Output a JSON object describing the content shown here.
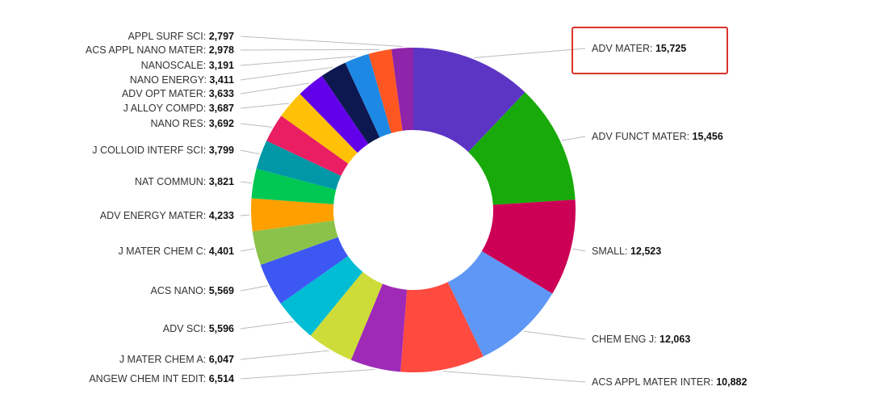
{
  "chart_data": {
    "type": "pie",
    "style": "donut",
    "highlighted_category": "ADV MATER",
    "highlight_color": "#d9342b",
    "leader_color": "#bbbbbb",
    "slices": [
      {
        "name": "ADV MATER",
        "value": 15725,
        "label": "ADV MATER: ",
        "value_label": "15,725",
        "color": "#5c35c4"
      },
      {
        "name": "ADV FUNCT MATER",
        "value": 15456,
        "label": "ADV FUNCT MATER: ",
        "value_label": "15,456",
        "color": "#18aa0a"
      },
      {
        "name": "SMALL",
        "value": 12523,
        "label": "SMALL: ",
        "value_label": "12,523",
        "color": "#cc0055"
      },
      {
        "name": "CHEM ENG J",
        "value": 12063,
        "label": "CHEM ENG J: ",
        "value_label": "12,063",
        "color": "#5e97f5"
      },
      {
        "name": "ACS APPL MATER INTER",
        "value": 10882,
        "label": "ACS APPL MATER INTER: ",
        "value_label": "10,882",
        "color": "#ff4a3f"
      },
      {
        "name": "ANGEW CHEM INT EDIT",
        "value": 6514,
        "label": "ANGEW CHEM INT EDIT: ",
        "value_label": "6,514",
        "color": "#9e2ab7"
      },
      {
        "name": "J MATER CHEM A",
        "value": 6047,
        "label": "J MATER CHEM A: ",
        "value_label": "6,047",
        "color": "#cddc39"
      },
      {
        "name": "ADV SCI",
        "value": 5596,
        "label": "ADV SCI: ",
        "value_label": "5,596",
        "color": "#00bcd4"
      },
      {
        "name": "ACS NANO",
        "value": 5569,
        "label": "ACS NANO: ",
        "value_label": "5,569",
        "color": "#3d57f3"
      },
      {
        "name": "J MATER CHEM C",
        "value": 4401,
        "label": "J MATER CHEM C: ",
        "value_label": "4,401",
        "color": "#8bc34a"
      },
      {
        "name": "ADV ENERGY MATER",
        "value": 4233,
        "label": "ADV ENERGY MATER: ",
        "value_label": "4,233",
        "color": "#ff9f00"
      },
      {
        "name": "NAT COMMUN",
        "value": 3821,
        "label": "NAT COMMUN: ",
        "value_label": "3,821",
        "color": "#00c853"
      },
      {
        "name": "J COLLOID INTERF SCI",
        "value": 3799,
        "label": "J COLLOID INTERF SCI: ",
        "value_label": "3,799",
        "color": "#0098a6"
      },
      {
        "name": "NANO RES",
        "value": 3692,
        "label": "NANO RES: ",
        "value_label": "3,692",
        "color": "#e91e63"
      },
      {
        "name": "J ALLOY COMPD",
        "value": 3687,
        "label": "J ALLOY COMPD: ",
        "value_label": "3,687",
        "color": "#ffc107"
      },
      {
        "name": "ADV OPT MATER",
        "value": 3633,
        "label": "ADV OPT MATER: ",
        "value_label": "3,633",
        "color": "#6200ea"
      },
      {
        "name": "NANO ENERGY",
        "value": 3411,
        "label": "NANO ENERGY: ",
        "value_label": "3,411",
        "color": "#0d1850"
      },
      {
        "name": "NANOSCALE",
        "value": 3191,
        "label": "NANOSCALE: ",
        "value_label": "3,191",
        "color": "#1e88e5"
      },
      {
        "name": "ACS APPL NANO MATER",
        "value": 2978,
        "label": "ACS APPL NANO MATER: ",
        "value_label": "2,978",
        "color": "#ff5722"
      },
      {
        "name": "APPL SURF SCI",
        "value": 2797,
        "label": "APPL SURF SCI: ",
        "value_label": "2,797",
        "color": "#8e24aa"
      }
    ]
  }
}
